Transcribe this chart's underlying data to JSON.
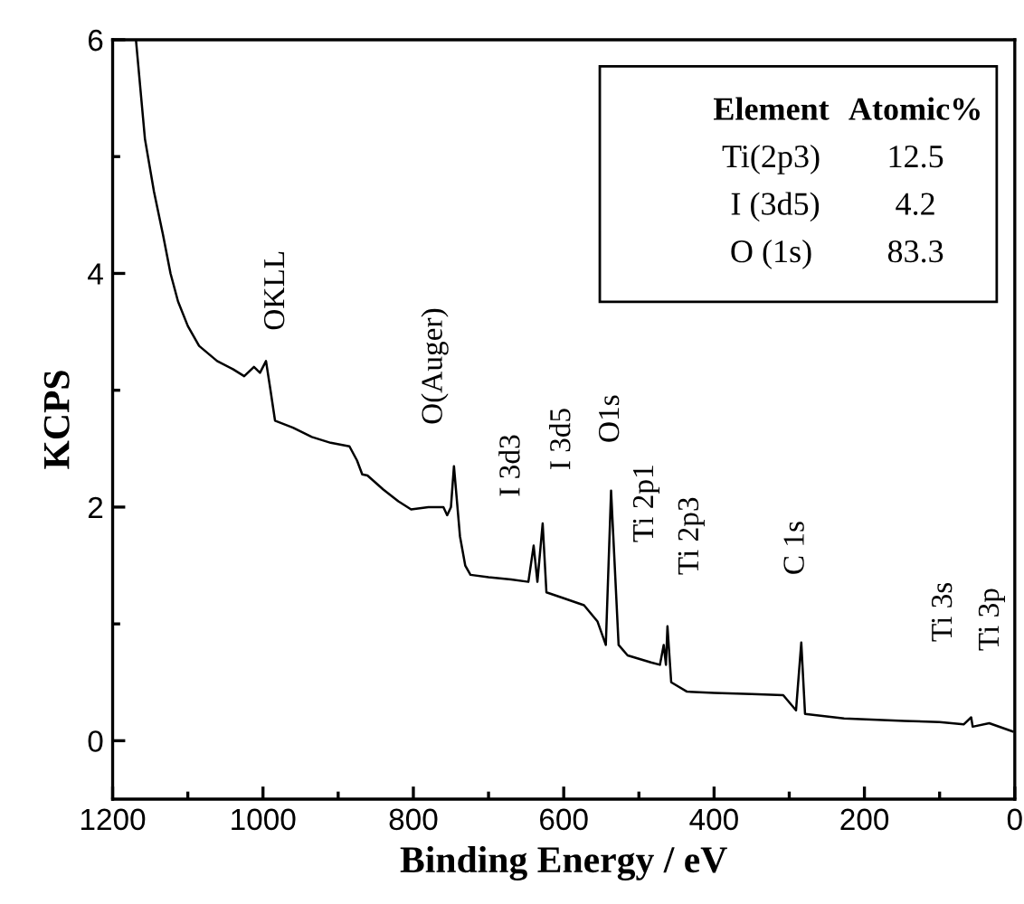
{
  "chart_data": {
    "type": "line",
    "xlabel": "Binding Energy / eV",
    "ylabel": "KCPS",
    "x": [
      1169,
      1157,
      1145,
      1133,
      1123,
      1113,
      1100,
      1085,
      1061,
      1040,
      1025,
      1012,
      1004,
      996,
      990,
      984,
      960,
      935,
      910,
      885,
      875,
      868,
      861,
      840,
      820,
      803,
      780,
      760,
      755,
      750,
      746,
      738,
      731,
      724,
      700,
      670,
      647,
      640,
      635,
      628,
      623,
      600,
      573,
      555,
      544,
      537,
      527,
      515,
      484,
      472,
      467,
      464,
      462,
      457,
      436,
      400,
      350,
      308,
      291,
      284,
      279,
      227,
      147,
      100,
      68,
      58,
      56,
      34,
      3
    ],
    "series": [
      {
        "color": "#000000",
        "values": [
          6.0,
          5.15,
          4.7,
          4.33,
          4.0,
          3.76,
          3.55,
          3.38,
          3.25,
          3.18,
          3.12,
          3.2,
          3.15,
          3.25,
          3.0,
          2.74,
          2.68,
          2.6,
          2.55,
          2.52,
          2.4,
          2.28,
          2.27,
          2.15,
          2.05,
          1.98,
          2.0,
          2.0,
          1.93,
          2.0,
          2.35,
          1.75,
          1.5,
          1.42,
          1.4,
          1.38,
          1.36,
          1.67,
          1.36,
          1.86,
          1.27,
          1.22,
          1.16,
          1.02,
          0.82,
          2.14,
          0.82,
          0.73,
          0.67,
          0.65,
          0.82,
          0.65,
          0.98,
          0.5,
          0.42,
          0.41,
          0.4,
          0.39,
          0.26,
          0.84,
          0.23,
          0.19,
          0.17,
          0.16,
          0.14,
          0.2,
          0.12,
          0.15,
          0.08
        ]
      }
    ],
    "xlim": [
      1200,
      0
    ],
    "xticks": [
      1200,
      {
        "value": 1100,
        "label": null
      },
      1000,
      {
        "value": 900,
        "label": null
      },
      800,
      {
        "value": 700,
        "label": null
      },
      600,
      {
        "value": 500,
        "label": null
      },
      400,
      {
        "value": 300,
        "label": null
      },
      200,
      {
        "value": 100,
        "label": null
      },
      0
    ],
    "ylim": [
      -0.5,
      6
    ],
    "yticks": [
      0,
      {
        "value": 1,
        "label": null
      },
      2,
      {
        "value": 3,
        "label": null
      },
      4,
      {
        "value": 5,
        "label": null
      },
      6
    ],
    "grid": false,
    "legend": false,
    "marker": "none",
    "line_style": "solid",
    "annotations": [
      "OKLL",
      "O(Auger)",
      "I 3d3",
      "I 3d5",
      "O1s",
      "Ti 2p1",
      "Ti 2p3",
      "C 1s",
      "Ti 3s",
      "Ti 3p",
      "Element",
      "Atomic%",
      "Ti(2p3)",
      "12.5",
      " I (3d5)",
      "4.2",
      "O (1s)",
      "83.3"
    ]
  }
}
